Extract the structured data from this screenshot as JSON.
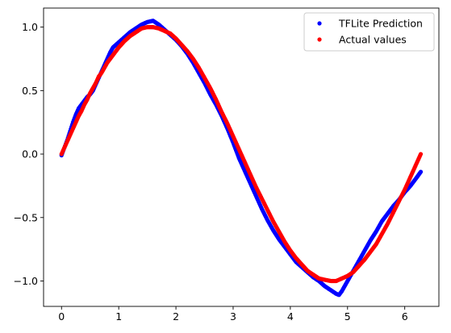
{
  "chart_data": {
    "type": "scatter",
    "xlim": [
      -0.314,
      6.597
    ],
    "ylim": [
      -1.2,
      1.15
    ],
    "x_ticks": [
      0,
      1,
      2,
      3,
      4,
      5,
      6
    ],
    "y_ticks": [
      -1.0,
      -0.5,
      0.0,
      0.5,
      1.0
    ],
    "x_tick_labels": [
      "0",
      "1",
      "2",
      "3",
      "4",
      "5",
      "6"
    ],
    "y_tick_labels": [
      "−1.0",
      "−0.5",
      "0.0",
      "0.5",
      "1.0"
    ],
    "grid": false,
    "legend_position": "top-right",
    "series": [
      {
        "name": "TFLite Prediction",
        "color": "#0000ff",
        "marker": "circle",
        "x": [
          0.0,
          0.05,
          0.1,
          0.15,
          0.2,
          0.25,
          0.3,
          0.35,
          0.4,
          0.45,
          0.5,
          0.55,
          0.6,
          0.65,
          0.7,
          0.75,
          0.8,
          0.85,
          0.9,
          0.95,
          1.0,
          1.1,
          1.2,
          1.3,
          1.4,
          1.5,
          1.6,
          1.7,
          1.8,
          1.9,
          2.0,
          2.1,
          2.2,
          2.3,
          2.4,
          2.5,
          2.6,
          2.7,
          2.8,
          2.9,
          3.0,
          3.1,
          3.2,
          3.3,
          3.4,
          3.5,
          3.6,
          3.7,
          3.8,
          3.9,
          4.0,
          4.1,
          4.2,
          4.3,
          4.4,
          4.5,
          4.6,
          4.7,
          4.8,
          4.85,
          4.9,
          5.0,
          5.1,
          5.2,
          5.3,
          5.4,
          5.5,
          5.6,
          5.7,
          5.8,
          5.9,
          6.0,
          6.1,
          6.2,
          6.28
        ],
        "y": [
          -0.01,
          0.05,
          0.11,
          0.18,
          0.25,
          0.31,
          0.36,
          0.39,
          0.42,
          0.45,
          0.47,
          0.5,
          0.55,
          0.6,
          0.65,
          0.7,
          0.75,
          0.8,
          0.84,
          0.86,
          0.88,
          0.92,
          0.96,
          0.99,
          1.02,
          1.04,
          1.05,
          1.02,
          0.98,
          0.94,
          0.9,
          0.85,
          0.79,
          0.72,
          0.64,
          0.56,
          0.47,
          0.39,
          0.3,
          0.2,
          0.09,
          -0.03,
          -0.13,
          -0.23,
          -0.33,
          -0.43,
          -0.52,
          -0.6,
          -0.67,
          -0.73,
          -0.79,
          -0.85,
          -0.89,
          -0.93,
          -0.97,
          -1.0,
          -1.04,
          -1.07,
          -1.1,
          -1.11,
          -1.08,
          -1.0,
          -0.92,
          -0.84,
          -0.76,
          -0.68,
          -0.61,
          -0.53,
          -0.47,
          -0.41,
          -0.36,
          -0.3,
          -0.25,
          -0.19,
          -0.14
        ]
      },
      {
        "name": "Actual values",
        "color": "#ff0000",
        "marker": "circle",
        "x": [
          0.0,
          0.05,
          0.1,
          0.15,
          0.2,
          0.25,
          0.3,
          0.35,
          0.4,
          0.45,
          0.5,
          0.55,
          0.6,
          0.65,
          0.7,
          0.75,
          0.8,
          0.85,
          0.9,
          0.95,
          1.0,
          1.1,
          1.2,
          1.3,
          1.4,
          1.5,
          1.57,
          1.6,
          1.7,
          1.8,
          1.9,
          2.0,
          2.1,
          2.2,
          2.3,
          2.4,
          2.5,
          2.6,
          2.7,
          2.8,
          2.9,
          3.0,
          3.1,
          3.2,
          3.3,
          3.4,
          3.5,
          3.6,
          3.7,
          3.8,
          3.9,
          4.0,
          4.1,
          4.2,
          4.3,
          4.4,
          4.5,
          4.6,
          4.71,
          4.8,
          4.9,
          5.0,
          5.1,
          5.2,
          5.3,
          5.4,
          5.5,
          5.6,
          5.7,
          5.8,
          5.9,
          6.0,
          6.1,
          6.2,
          6.28
        ],
        "y": [
          0.0,
          0.05,
          0.1,
          0.15,
          0.2,
          0.25,
          0.3,
          0.34,
          0.39,
          0.43,
          0.48,
          0.52,
          0.56,
          0.61,
          0.64,
          0.68,
          0.72,
          0.75,
          0.78,
          0.81,
          0.84,
          0.89,
          0.93,
          0.96,
          0.99,
          1.0,
          1.0,
          1.0,
          0.99,
          0.97,
          0.95,
          0.91,
          0.86,
          0.81,
          0.75,
          0.68,
          0.6,
          0.52,
          0.43,
          0.33,
          0.24,
          0.14,
          0.04,
          -0.06,
          -0.16,
          -0.26,
          -0.35,
          -0.44,
          -0.53,
          -0.61,
          -0.69,
          -0.76,
          -0.82,
          -0.87,
          -0.92,
          -0.95,
          -0.98,
          -0.99,
          -1.0,
          -1.0,
          -0.98,
          -0.96,
          -0.93,
          -0.88,
          -0.83,
          -0.77,
          -0.71,
          -0.63,
          -0.55,
          -0.46,
          -0.37,
          -0.28,
          -0.18,
          -0.08,
          0.0
        ]
      }
    ]
  }
}
